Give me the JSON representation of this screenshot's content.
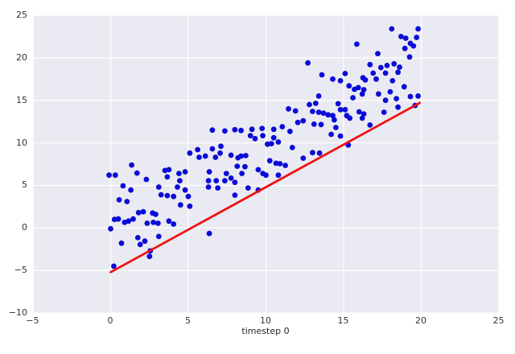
{
  "chart_data": {
    "type": "scatter",
    "title": "",
    "xlabel": "timestep 0",
    "ylabel": "",
    "xlim": [
      -5,
      25
    ],
    "ylim": [
      -10,
      25
    ],
    "grid": true,
    "legend_position": "none",
    "x_ticks": {
      "values": [
        -5,
        0,
        5,
        10,
        15,
        20,
        25
      ],
      "labels": [
        "−5",
        "0",
        "5",
        "10",
        "15",
        "20",
        "25"
      ]
    },
    "y_ticks": {
      "values": [
        -10,
        -5,
        0,
        5,
        10,
        15,
        20,
        25
      ],
      "labels": [
        "−10",
        "−5",
        "0",
        "5",
        "10",
        "15",
        "20",
        "25"
      ]
    },
    "style": {
      "figure_bg": "#ffffff",
      "plot_bg": "#eaeaf2",
      "grid_color": "#ffffff",
      "tick_color": "#333333",
      "label_color": "#262626",
      "dot_color": "#0b0bd8",
      "line_color": "#ef1212"
    },
    "series": [
      {
        "name": "observations",
        "type": "scatter",
        "color": "#0b0bd8",
        "marker": "circle",
        "marker_radius": 3.4,
        "points": [
          [
            12.7,
            19.4
          ],
          [
            13.6,
            18.0
          ],
          [
            13.4,
            15.5
          ],
          [
            18.1,
            23.4
          ],
          [
            19.8,
            23.4
          ],
          [
            18.7,
            22.5
          ],
          [
            19.0,
            22.3
          ],
          [
            19.7,
            22.4
          ],
          [
            15.85,
            21.6
          ],
          [
            19.3,
            21.7
          ],
          [
            19.5,
            21.4
          ],
          [
            18.95,
            21.1
          ],
          [
            17.2,
            20.5
          ],
          [
            19.25,
            20.1
          ],
          [
            16.7,
            19.2
          ],
          [
            18.25,
            19.3
          ],
          [
            17.8,
            19.1
          ],
          [
            17.4,
            18.85
          ],
          [
            18.6,
            18.9
          ],
          [
            15.1,
            18.15
          ],
          [
            16.9,
            18.2
          ],
          [
            17.7,
            18.2
          ],
          [
            18.5,
            18.3
          ],
          [
            14.3,
            17.5
          ],
          [
            14.8,
            17.3
          ],
          [
            16.25,
            17.65
          ],
          [
            16.4,
            17.4
          ],
          [
            17.1,
            17.5
          ],
          [
            18.15,
            17.3
          ],
          [
            15.35,
            16.7
          ],
          [
            15.95,
            16.5
          ],
          [
            15.7,
            16.3
          ],
          [
            16.3,
            16.25
          ],
          [
            18.9,
            16.6
          ],
          [
            16.2,
            15.75
          ],
          [
            17.25,
            15.75
          ],
          [
            18.0,
            16.0
          ],
          [
            15.6,
            15.3
          ],
          [
            19.3,
            15.45
          ],
          [
            19.8,
            15.5
          ],
          [
            17.7,
            15.0
          ],
          [
            18.4,
            15.2
          ],
          [
            12.8,
            14.5
          ],
          [
            13.2,
            14.65
          ],
          [
            14.65,
            14.6
          ],
          [
            19.6,
            14.4
          ],
          [
            18.5,
            14.2
          ],
          [
            13.0,
            13.7
          ],
          [
            13.4,
            13.6
          ],
          [
            13.7,
            13.5
          ],
          [
            14.0,
            13.3
          ],
          [
            14.8,
            13.9
          ],
          [
            15.1,
            13.9
          ],
          [
            14.3,
            13.2
          ],
          [
            15.2,
            13.2
          ],
          [
            16.0,
            13.65
          ],
          [
            16.3,
            13.4
          ],
          [
            17.6,
            13.6
          ],
          [
            11.45,
            14.0
          ],
          [
            11.9,
            13.75
          ],
          [
            12.4,
            12.6
          ],
          [
            12.05,
            12.4
          ],
          [
            13.1,
            12.2
          ],
          [
            13.55,
            12.15
          ],
          [
            14.4,
            12.7
          ],
          [
            15.4,
            12.9
          ],
          [
            16.2,
            12.9
          ],
          [
            16.7,
            12.1
          ],
          [
            14.5,
            11.8
          ],
          [
            14.2,
            11.0
          ],
          [
            14.8,
            10.8
          ],
          [
            15.3,
            9.75
          ],
          [
            11.05,
            11.9
          ],
          [
            11.55,
            11.35
          ],
          [
            6.55,
            11.5
          ],
          [
            7.35,
            11.4
          ],
          [
            8.0,
            11.55
          ],
          [
            8.4,
            11.45
          ],
          [
            9.1,
            11.6
          ],
          [
            9.75,
            11.7
          ],
          [
            10.5,
            11.6
          ],
          [
            9.0,
            10.85
          ],
          [
            9.3,
            10.5
          ],
          [
            9.8,
            10.85
          ],
          [
            10.5,
            10.6
          ],
          [
            10.8,
            10.1
          ],
          [
            10.1,
            9.85
          ],
          [
            10.35,
            9.9
          ],
          [
            11.7,
            9.45
          ],
          [
            12.4,
            8.2
          ],
          [
            13.0,
            8.85
          ],
          [
            13.45,
            8.8
          ],
          [
            6.55,
            9.3
          ],
          [
            7.1,
            9.6
          ],
          [
            7.05,
            8.8
          ],
          [
            6.75,
            8.3
          ],
          [
            7.75,
            8.55
          ],
          [
            8.2,
            8.25
          ],
          [
            8.4,
            8.45
          ],
          [
            8.7,
            8.5
          ],
          [
            5.1,
            8.8
          ],
          [
            5.6,
            9.2
          ],
          [
            5.7,
            8.3
          ],
          [
            6.1,
            8.45
          ],
          [
            10.25,
            7.9
          ],
          [
            10.65,
            7.6
          ],
          [
            10.9,
            7.55
          ],
          [
            11.25,
            7.35
          ],
          [
            8.15,
            7.25
          ],
          [
            8.65,
            7.2
          ],
          [
            6.35,
            6.6
          ],
          [
            7.45,
            6.4
          ],
          [
            7.75,
            5.85
          ],
          [
            7.35,
            5.55
          ],
          [
            6.8,
            5.55
          ],
          [
            8.0,
            5.35
          ],
          [
            8.45,
            6.4
          ],
          [
            9.5,
            6.85
          ],
          [
            9.8,
            6.4
          ],
          [
            10.0,
            6.2
          ],
          [
            10.8,
            6.2
          ],
          [
            6.3,
            5.55
          ],
          [
            8.85,
            4.7
          ],
          [
            9.5,
            4.45
          ],
          [
            6.9,
            4.7
          ],
          [
            6.3,
            4.8
          ],
          [
            8.0,
            3.85
          ],
          [
            1.35,
            7.4
          ],
          [
            1.7,
            6.45
          ],
          [
            -0.1,
            6.2
          ],
          [
            0.3,
            6.2
          ],
          [
            3.5,
            6.75
          ],
          [
            3.75,
            6.85
          ],
          [
            3.65,
            6.0
          ],
          [
            4.4,
            6.4
          ],
          [
            4.8,
            6.6
          ],
          [
            2.3,
            5.7
          ],
          [
            4.45,
            5.55
          ],
          [
            0.8,
            4.95
          ],
          [
            1.3,
            4.45
          ],
          [
            3.1,
            4.8
          ],
          [
            4.3,
            4.8
          ],
          [
            4.8,
            4.45
          ],
          [
            0.55,
            3.3
          ],
          [
            1.05,
            3.1
          ],
          [
            3.25,
            3.9
          ],
          [
            3.65,
            3.8
          ],
          [
            4.05,
            3.7
          ],
          [
            5.0,
            3.7
          ],
          [
            4.5,
            2.7
          ],
          [
            5.1,
            2.55
          ],
          [
            1.8,
            1.8
          ],
          [
            2.1,
            1.9
          ],
          [
            2.7,
            1.75
          ],
          [
            2.9,
            1.6
          ],
          [
            0.25,
            1.0
          ],
          [
            0.5,
            1.05
          ],
          [
            1.45,
            1.05
          ],
          [
            0.9,
            0.65
          ],
          [
            1.15,
            0.8
          ],
          [
            2.35,
            0.55
          ],
          [
            2.75,
            0.65
          ],
          [
            3.05,
            0.55
          ],
          [
            3.75,
            0.8
          ],
          [
            4.05,
            0.45
          ],
          [
            0.0,
            -0.1
          ],
          [
            1.75,
            -1.15
          ],
          [
            0.7,
            -1.8
          ],
          [
            1.9,
            -1.95
          ],
          [
            2.2,
            -1.55
          ],
          [
            3.1,
            -1.0
          ],
          [
            2.55,
            -2.7
          ],
          [
            2.5,
            -3.35
          ],
          [
            0.2,
            -4.5
          ],
          [
            6.35,
            -0.65
          ]
        ]
      },
      {
        "name": "trend-line",
        "type": "line",
        "color": "#ef1212",
        "width": 2.8,
        "points": [
          [
            0,
            -5.2
          ],
          [
            19.9,
            14.7
          ]
        ]
      }
    ]
  }
}
